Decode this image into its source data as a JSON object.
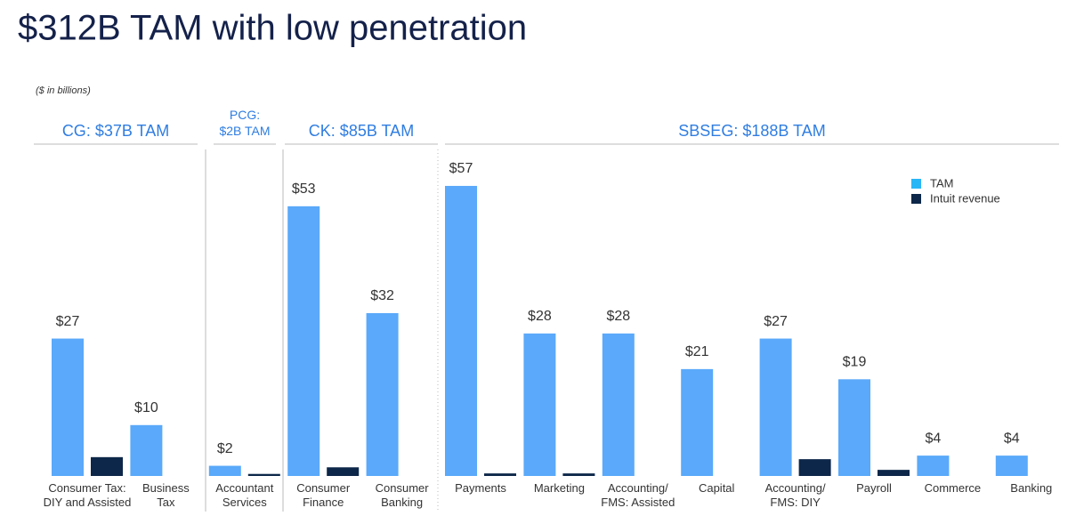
{
  "chart_data": {
    "type": "bar",
    "title": "$312B TAM with low penetration",
    "subtitle": "($ in billions)",
    "segments": [
      "CG: $37B TAM",
      "PCG:\n$2B TAM",
      "CK: $85B TAM",
      "SBSEG: $188B TAM"
    ],
    "categories": [
      "Consumer Tax:\nDIY and Assisted",
      "Business\nTax",
      "Accountant\nServices",
      "Consumer\nFinance",
      "Consumer\nBanking",
      "Payments",
      "Marketing",
      "Accounting/\nFMS: Assisted",
      "Capital",
      "Accounting/\nFMS: DIY",
      "Payroll",
      "Commerce",
      "Banking"
    ],
    "series": [
      {
        "name": "TAM",
        "color": "#5aa9fa",
        "legend_color": "#29b6f6",
        "values": [
          27,
          10,
          2,
          53,
          32,
          57,
          28,
          28,
          21,
          27,
          19,
          4,
          4
        ],
        "value_labels": [
          "$27",
          "$10",
          "$2",
          "$53",
          "$32",
          "$57",
          "$28",
          "$28",
          "$21",
          "$27",
          "$19",
          "$4",
          "$4"
        ]
      },
      {
        "name": "Intuit revenue",
        "color": "#0c2749",
        "values": [
          3.7,
          null,
          0.4,
          1.7,
          null,
          0.5,
          0.5,
          null,
          null,
          3.3,
          1.2,
          null,
          null
        ]
      }
    ],
    "ylim": [
      0,
      60
    ],
    "grid": false,
    "legend": "upper right"
  }
}
